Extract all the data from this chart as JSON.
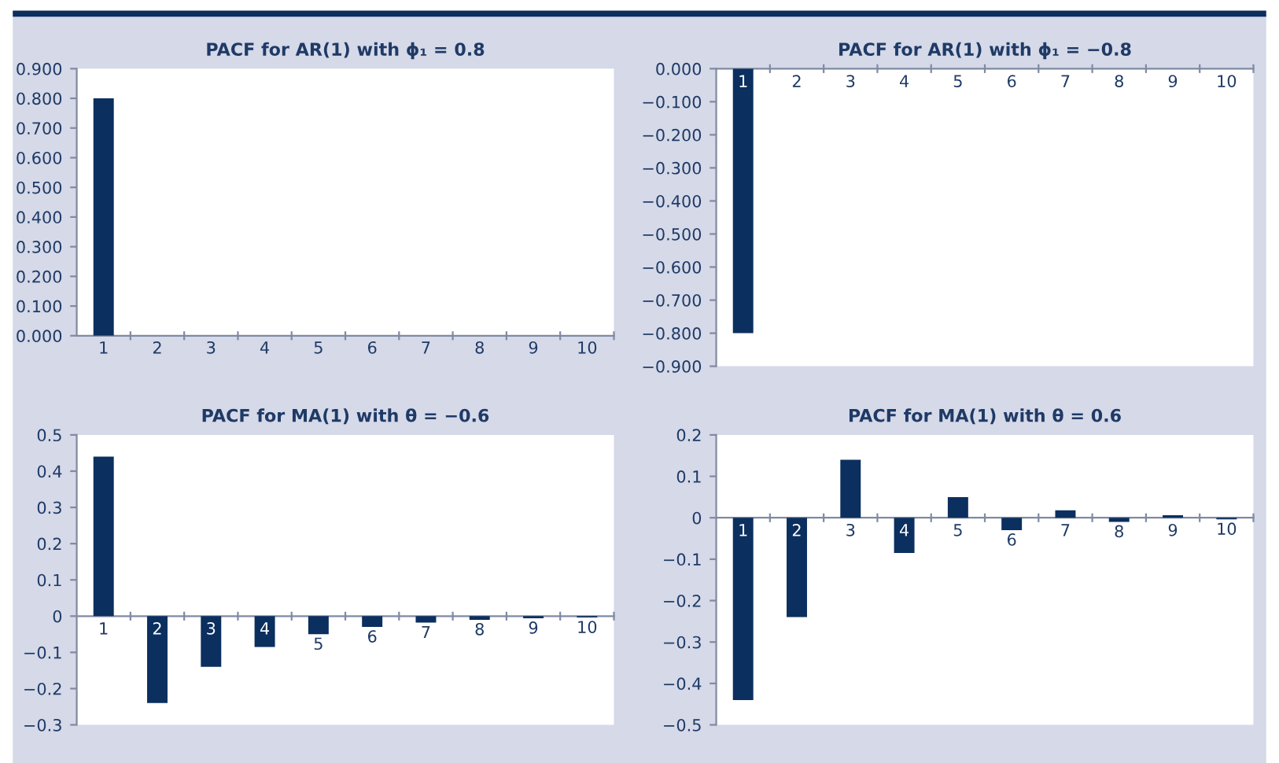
{
  "chart_data": [
    {
      "type": "bar",
      "title": "PACF for AR(1) with ϕ₁ = 0.8",
      "categories": [
        "1",
        "2",
        "3",
        "4",
        "5",
        "6",
        "7",
        "8",
        "9",
        "10"
      ],
      "color": "#0b2f5e",
      "values": [
        0.8,
        0,
        0,
        0,
        0,
        0,
        0,
        0,
        0,
        0
      ],
      "ylim": [
        0,
        0.9
      ],
      "yticks": [
        {
          "value": 0,
          "label": "0.000"
        },
        {
          "value": 0.1,
          "label": "0.100"
        },
        {
          "value": 0.2,
          "label": "0.200"
        },
        {
          "value": 0.3,
          "label": "0.300"
        },
        {
          "value": 0.4,
          "label": "0.400"
        },
        {
          "value": 0.5,
          "label": "0.500"
        },
        {
          "value": 0.6,
          "label": "0.600"
        },
        {
          "value": 0.7,
          "label": "0.700"
        },
        {
          "value": 0.8,
          "label": "0.800"
        },
        {
          "value": 0.9,
          "label": "0.900"
        }
      ],
      "grid": false,
      "legend": false
    },
    {
      "type": "bar",
      "title": "PACF for AR(1) with ϕ₁ = −0.8",
      "categories": [
        "1",
        "2",
        "3",
        "4",
        "5",
        "6",
        "7",
        "8",
        "9",
        "10"
      ],
      "color": "#0b2f5e",
      "values": [
        -0.8,
        0,
        0,
        0,
        0,
        0,
        0,
        0,
        0,
        0
      ],
      "ylim": [
        -0.9,
        0
      ],
      "yticks": [
        {
          "value": -0.9,
          "label": "−0.900"
        },
        {
          "value": -0.8,
          "label": "−0.800"
        },
        {
          "value": -0.7,
          "label": "−0.700"
        },
        {
          "value": -0.6,
          "label": "−0.600"
        },
        {
          "value": -0.5,
          "label": "−0.500"
        },
        {
          "value": -0.4,
          "label": "−0.400"
        },
        {
          "value": -0.3,
          "label": "−0.300"
        },
        {
          "value": -0.2,
          "label": "−0.200"
        },
        {
          "value": -0.1,
          "label": "−0.100"
        },
        {
          "value": 0,
          "label": "0.000"
        }
      ],
      "grid": false,
      "legend": false
    },
    {
      "type": "bar",
      "title": "PACF for MA(1) with θ = −0.6",
      "categories": [
        "1",
        "2",
        "3",
        "4",
        "5",
        "6",
        "7",
        "8",
        "9",
        "10"
      ],
      "color": "#0b2f5e",
      "values": [
        0.44,
        -0.24,
        -0.14,
        -0.085,
        -0.05,
        -0.03,
        -0.018,
        -0.01,
        -0.006,
        -0.004
      ],
      "ylim": [
        -0.3,
        0.5
      ],
      "yticks": [
        {
          "value": -0.3,
          "label": "−0.3"
        },
        {
          "value": -0.2,
          "label": "−0.2"
        },
        {
          "value": -0.1,
          "label": "−0.1"
        },
        {
          "value": 0,
          "label": "0"
        },
        {
          "value": 0.1,
          "label": "0.1"
        },
        {
          "value": 0.2,
          "label": "0.2"
        },
        {
          "value": 0.3,
          "label": "0.3"
        },
        {
          "value": 0.4,
          "label": "0.4"
        },
        {
          "value": 0.5,
          "label": "0.5"
        }
      ],
      "grid": false,
      "legend": false
    },
    {
      "type": "bar",
      "title": "PACF for MA(1) with θ = 0.6",
      "categories": [
        "1",
        "2",
        "3",
        "4",
        "5",
        "6",
        "7",
        "8",
        "9",
        "10"
      ],
      "color": "#0b2f5e",
      "values": [
        -0.44,
        -0.24,
        0.14,
        -0.085,
        0.05,
        -0.03,
        0.018,
        -0.01,
        0.006,
        -0.004
      ],
      "ylim": [
        -0.5,
        0.2
      ],
      "yticks": [
        {
          "value": -0.5,
          "label": "−0.5"
        },
        {
          "value": -0.4,
          "label": "−0.4"
        },
        {
          "value": -0.3,
          "label": "−0.3"
        },
        {
          "value": -0.2,
          "label": "−0.2"
        },
        {
          "value": -0.1,
          "label": "−0.1"
        },
        {
          "value": 0,
          "label": "0"
        },
        {
          "value": 0.1,
          "label": "0.1"
        },
        {
          "value": 0.2,
          "label": "0.2"
        }
      ],
      "grid": false,
      "legend": false
    }
  ]
}
